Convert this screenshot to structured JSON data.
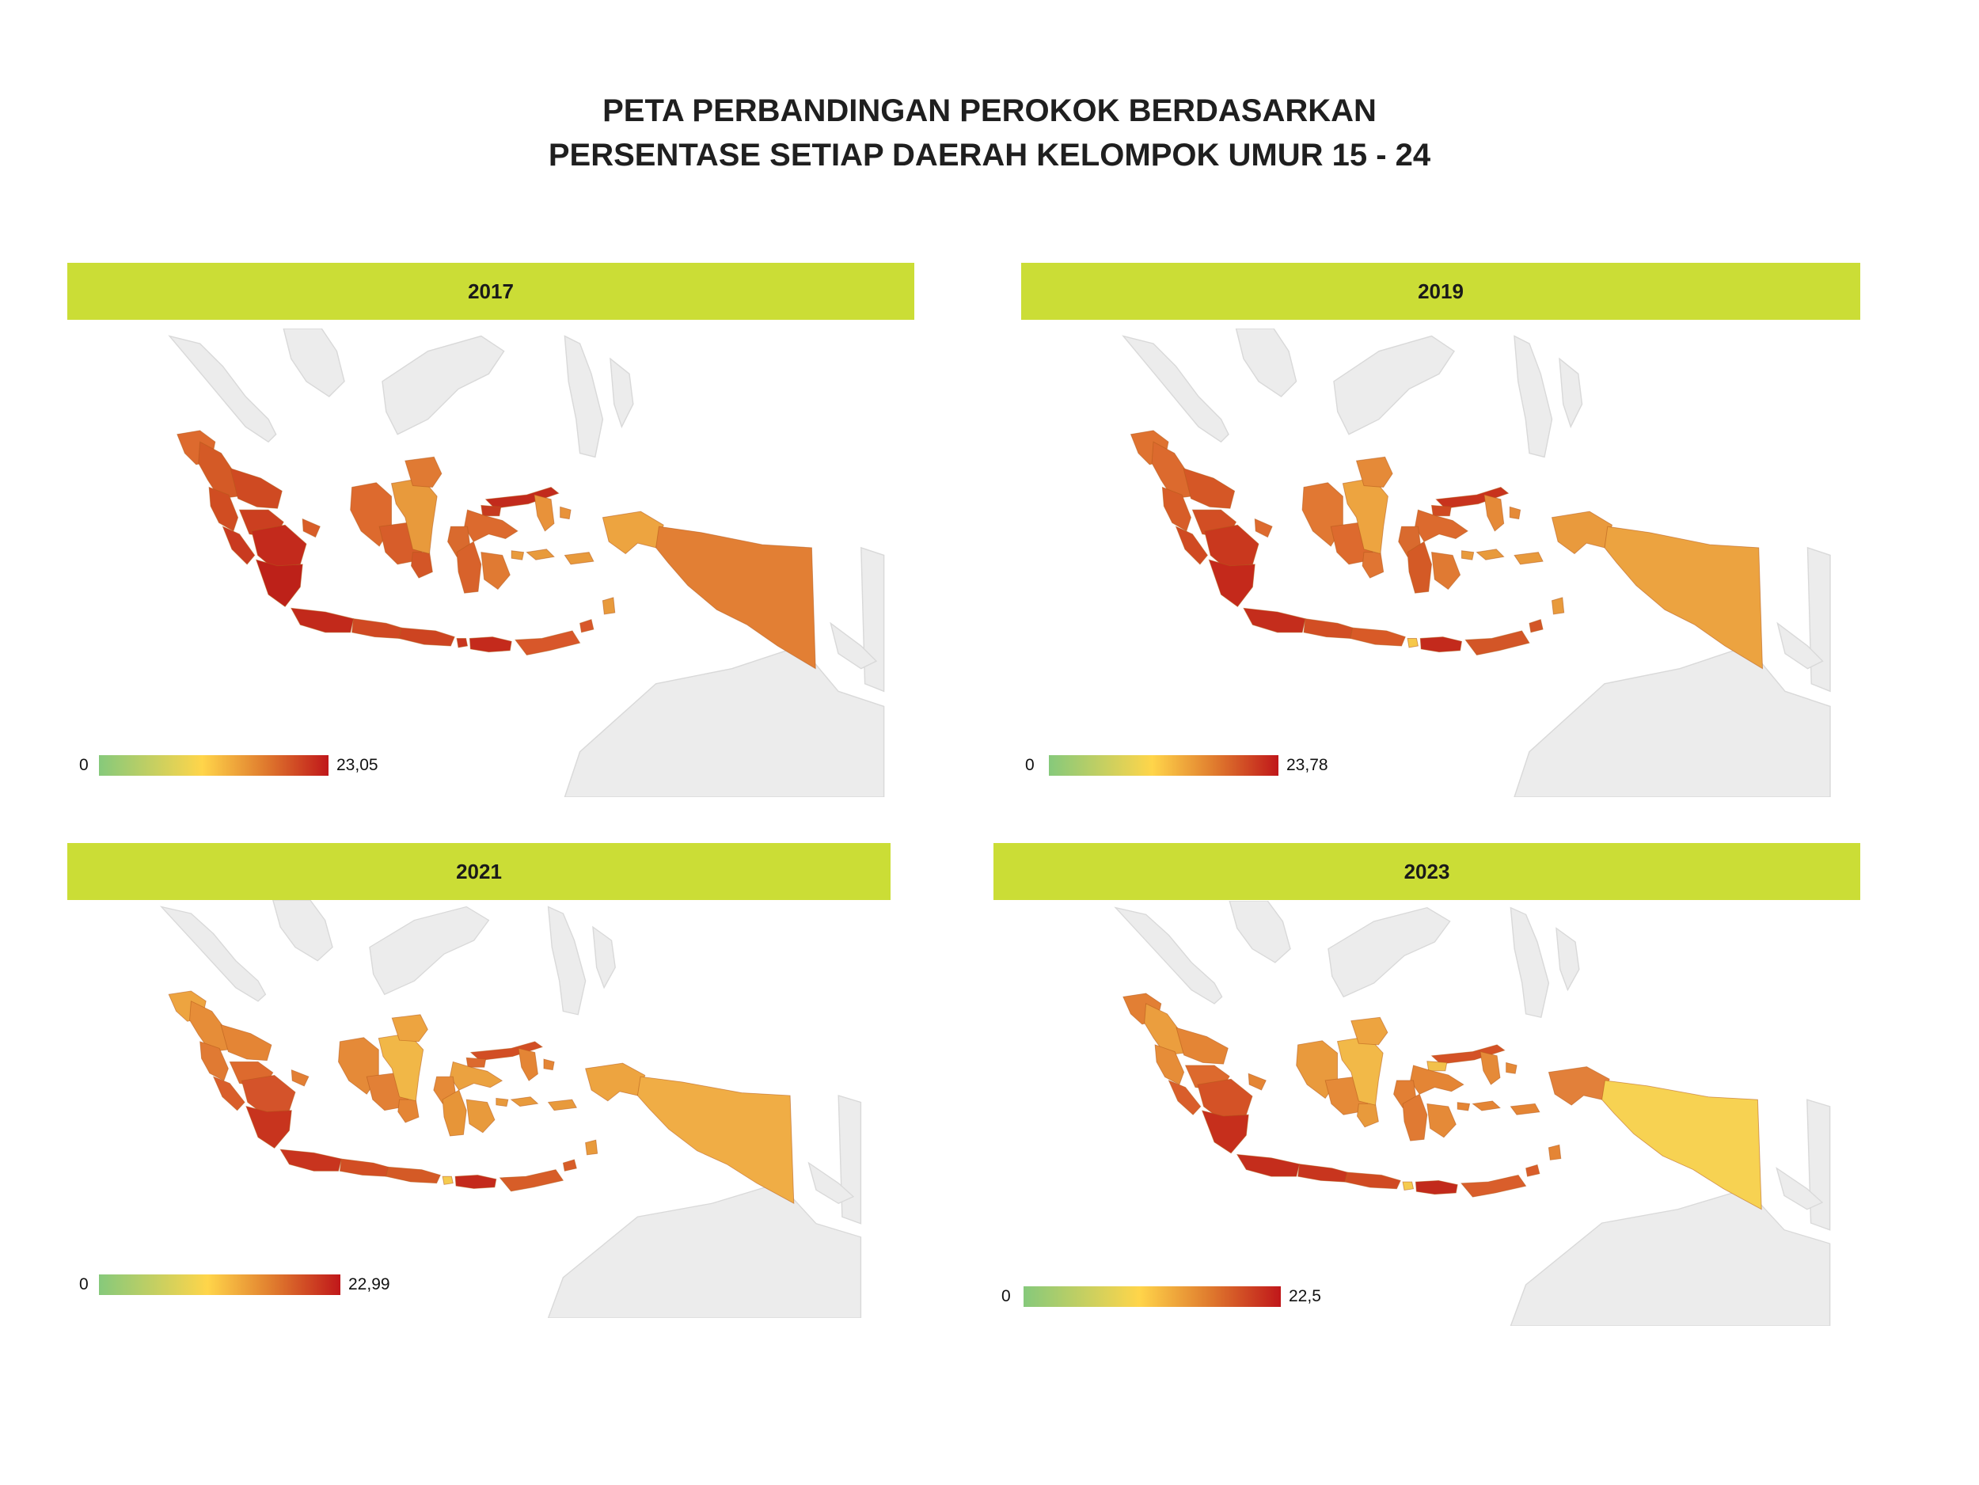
{
  "title": {
    "line1": "PETA PERBANDINGAN PEROKOK BERDASARKAN",
    "line2": "PERSENTASE SETIAP DAERAH KELOMPOK UMUR 15 - 24"
  },
  "colors": {
    "header_bg": "#cbdd36",
    "background_land": "#ececec",
    "scale_low": "#86c97b",
    "scale_mid": "#ffd54a",
    "scale_high": "#c0171a"
  },
  "panels": [
    {
      "year": "2017",
      "legend": {
        "min": "0",
        "max": "23,05"
      },
      "colors": {
        "aceh": "#dd6a2e",
        "sumut": "#d45a26",
        "riau": "#cf4a22",
        "sumbar": "#d04d22",
        "jambi": "#cb3f20",
        "sumsel": "#c32a1c",
        "bengkulu": "#c93a20",
        "lampung": "#bd2119",
        "bangka": "#d85d28",
        "jabar": "#c2291b",
        "jateng": "#d04923",
        "jatim": "#cd4421",
        "bali": "#c8351e",
        "ntb": "#c42a1c",
        "ntt": "#d8572a",
        "kalbar": "#dd6a2e",
        "kalteng": "#d75d2a",
        "kalsel": "#d35627",
        "kaltim": "#e89a3c",
        "kaltara": "#e07a33",
        "sulut": "#c22a1c",
        "gorontalo": "#c63a1f",
        "sulteng": "#dc6a2e",
        "sulsel": "#d8622b",
        "sultra": "#e07a33",
        "sulbar": "#d96a2e",
        "malut": "#e8923a",
        "maluku": "#e89a3c",
        "papuabarat": "#eda440",
        "papua": "#e27f34"
      }
    },
    {
      "year": "2019",
      "legend": {
        "min": "0",
        "max": "23,78"
      },
      "colors": {
        "aceh": "#df7230",
        "sumut": "#dc6a2e",
        "riau": "#d55726",
        "sumbar": "#d75d28",
        "jambi": "#d24e24",
        "sumsel": "#c9381e",
        "bengkulu": "#d04a22",
        "lampung": "#c4291b",
        "bangka": "#dd6a2e",
        "jabar": "#c42d1c",
        "jateng": "#d24e24",
        "jatim": "#d85a27",
        "bali": "#f6c84a",
        "ntb": "#c32a1c",
        "ntt": "#d35627",
        "kalbar": "#e17833",
        "kalteng": "#dd6a2e",
        "kalsel": "#e07533",
        "kaltim": "#eda440",
        "kaltara": "#e58a38",
        "sulut": "#c8331d",
        "gorontalo": "#d04a22",
        "sulteng": "#dc6a2e",
        "sulsel": "#d45a26",
        "sultra": "#e07a33",
        "sulbar": "#d96a2e",
        "malut": "#e58a38",
        "maluku": "#e89a3c",
        "papuabarat": "#e99a3d",
        "papua": "#eca340"
      }
    },
    {
      "year": "2021",
      "legend": {
        "min": "0",
        "max": "22,99"
      },
      "colors": {
        "aceh": "#eda440",
        "sumut": "#e68d38",
        "riau": "#e48535",
        "sumbar": "#e07a33",
        "jambi": "#dd6a2e",
        "sumsel": "#d4532a",
        "bengkulu": "#d95e2b",
        "lampung": "#c8341e",
        "bangka": "#e27f34",
        "jabar": "#c8341e",
        "jateng": "#d24e24",
        "jatim": "#d45a26",
        "bali": "#f5cb4f",
        "ntb": "#c42a1c",
        "ntt": "#d75d28",
        "kalbar": "#e58a38",
        "kalteng": "#e28036",
        "kalsel": "#e48535",
        "kaltim": "#f1b747",
        "kaltara": "#eda440",
        "sulut": "#d24e24",
        "gorontalo": "#dc6a2e",
        "sulteng": "#eba240",
        "sulsel": "#e79538",
        "sultra": "#e89a3c",
        "sulbar": "#e58a38",
        "malut": "#e48535",
        "maluku": "#e89a3c",
        "papuabarat": "#eda440",
        "papua": "#f0ad45"
      }
    },
    {
      "year": "2023",
      "legend": {
        "min": "0",
        "max": "22,5"
      },
      "colors": {
        "aceh": "#e27f34",
        "sumut": "#eb9e3e",
        "riau": "#e48535",
        "sumbar": "#e68d38",
        "jambi": "#dd6a2e",
        "sumsel": "#d45226",
        "bengkulu": "#d95e2b",
        "lampung": "#c62f1c",
        "bangka": "#e48535",
        "jabar": "#c42d1c",
        "jateng": "#c8351e",
        "jatim": "#d04a22",
        "bali": "#f5cb4f",
        "ntb": "#c22a1c",
        "ntt": "#d95e2b",
        "kalbar": "#e99a3d",
        "kalteng": "#e58a38",
        "kalsel": "#e89a3c",
        "kaltim": "#f2b948",
        "kaltara": "#eda440",
        "sulut": "#d45226",
        "gorontalo": "#f2c04b",
        "sulteng": "#e48535",
        "sulsel": "#e07a33",
        "sultra": "#e58a38",
        "sulbar": "#e27f34",
        "malut": "#e58a38",
        "maluku": "#e48535",
        "papuabarat": "#e2803a",
        "papua": "#f7d252"
      }
    }
  ]
}
